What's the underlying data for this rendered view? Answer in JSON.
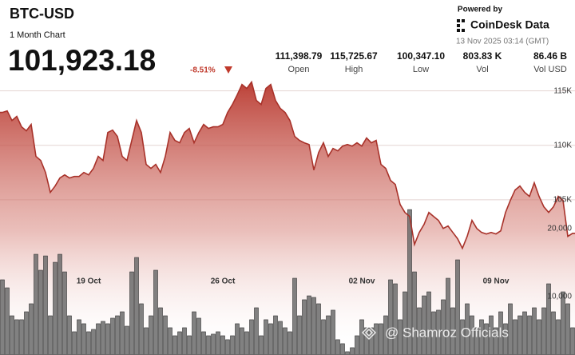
{
  "header": {
    "symbol": "BTC-USD",
    "subtitle": "1 Month Chart",
    "price": "101,923.18",
    "change": "-8.51%",
    "stats": [
      {
        "value": "111,398.79",
        "label": "Open"
      },
      {
        "value": "115,725.67",
        "label": "High"
      },
      {
        "value": "100,347.10",
        "label": "Low"
      },
      {
        "value": "803.83 K",
        "label": "Vol"
      },
      {
        "value": "86.46 B",
        "label": "Vol USD"
      }
    ],
    "powered_by": "Powered by",
    "brand": "CoinDesk Data",
    "timestamp": "13 Nov 2025 03:14 (GMT)"
  },
  "watermark": "@ Shamroz Officials",
  "chart_data": {
    "type": "area",
    "color": "#a8322a",
    "categories": [
      null,
      null,
      null,
      null,
      null,
      null,
      null,
      null,
      null,
      null,
      null,
      null,
      null,
      null,
      null,
      null,
      null,
      null,
      "19 Oct",
      null,
      null,
      null,
      null,
      null,
      null,
      null,
      null,
      null,
      null,
      null,
      null,
      null,
      null,
      null,
      null,
      null,
      null,
      null,
      null,
      null,
      null,
      null,
      null,
      null,
      null,
      null,
      "26 Oct",
      null,
      null,
      null,
      null,
      null,
      null,
      null,
      null,
      null,
      null,
      null,
      null,
      null,
      null,
      null,
      null,
      null,
      null,
      null,
      null,
      null,
      null,
      null,
      null,
      null,
      null,
      null,
      null,
      "02 Nov",
      null,
      null,
      null,
      null,
      null,
      null,
      null,
      null,
      null,
      null,
      null,
      null,
      null,
      null,
      null,
      null,
      null,
      null,
      null,
      null,
      null,
      null,
      null,
      null,
      null,
      null,
      null,
      "09 Nov",
      null,
      null,
      null,
      null,
      null,
      null,
      null,
      null,
      null,
      null,
      null,
      null,
      null,
      null,
      null,
      null
    ],
    "values": [
      113020,
      113160,
      112280,
      112650,
      111700,
      111330,
      111920,
      108980,
      108610,
      107510,
      105680,
      106260,
      107000,
      107290,
      107000,
      107140,
      107140,
      107510,
      107290,
      107880,
      108980,
      108610,
      111180,
      111400,
      110820,
      108980,
      108610,
      110450,
      112280,
      111180,
      108250,
      107880,
      108250,
      107510,
      108980,
      111180,
      110450,
      110230,
      111180,
      111550,
      110230,
      111180,
      111920,
      111550,
      111700,
      111700,
      111920,
      113020,
      113750,
      114630,
      115590,
      115220,
      115810,
      114120,
      113750,
      115220,
      115590,
      114120,
      113390,
      113020,
      112280,
      110820,
      110450,
      110230,
      110080,
      107730,
      109350,
      110230,
      108980,
      109710,
      109490,
      109930,
      110080,
      109930,
      110230,
      109930,
      110670,
      110230,
      110450,
      108250,
      107880,
      106780,
      106410,
      104570,
      103840,
      103470,
      100900,
      102000,
      102740,
      103840,
      103470,
      103110,
      102370,
      102590,
      102000,
      101420,
      100540,
      101640,
      103110,
      102370,
      102000,
      101860,
      102000,
      101860,
      102150,
      103840,
      104940,
      105900,
      106260,
      105680,
      105310,
      106560,
      105310,
      104350,
      103840,
      104350,
      105310,
      104940,
      101640,
      101920
    ],
    "ylim": [
      90750,
      116000
    ],
    "yticks": [
      {
        "value": 115000,
        "label": "115K"
      },
      {
        "value": 110000,
        "label": "110K"
      },
      {
        "value": 105000,
        "label": "105K"
      }
    ],
    "grid": true,
    "volume": {
      "type": "bar",
      "axis": "y2",
      "color": "#6b6b6b",
      "values": [
        12470,
        11290,
        7170,
        6590,
        6590,
        7760,
        8940,
        16230,
        13880,
        15990,
        7170,
        15050,
        16230,
        13640,
        7170,
        4820,
        6590,
        6000,
        4820,
        5170,
        6000,
        6350,
        6000,
        6820,
        7170,
        7760,
        5640,
        13640,
        15760,
        8940,
        5410,
        7170,
        13880,
        8350,
        7170,
        5410,
        4230,
        4820,
        5410,
        4230,
        7760,
        6820,
        4820,
        4230,
        4470,
        4820,
        4230,
        3650,
        4230,
        6000,
        5410,
        4820,
        6590,
        8350,
        4230,
        6590,
        6000,
        7170,
        6350,
        5410,
        4820,
        12700,
        7170,
        9530,
        10110,
        9880,
        8940,
        6590,
        7170,
        8000,
        3650,
        3060,
        1880,
        2470,
        4230,
        6590,
        5410,
        5410,
        6000,
        6000,
        7170,
        12470,
        11880,
        6590,
        10700,
        22810,
        13640,
        8350,
        10110,
        10700,
        7760,
        8000,
        9530,
        12700,
        8350,
        15410,
        6590,
        8940,
        7170,
        5410,
        6590,
        6000,
        7170,
        5410,
        7760,
        6000,
        8940,
        6590,
        7170,
        7760,
        7170,
        8350,
        6590,
        8350,
        11880,
        7760,
        6590,
        10700,
        8940,
        5410
      ]
    },
    "y2lim": [
      1400,
      41900
    ],
    "y2ticks": [
      {
        "value": 20000,
        "label": "20,000"
      },
      {
        "value": 10000,
        "label": "10,000"
      }
    ]
  }
}
